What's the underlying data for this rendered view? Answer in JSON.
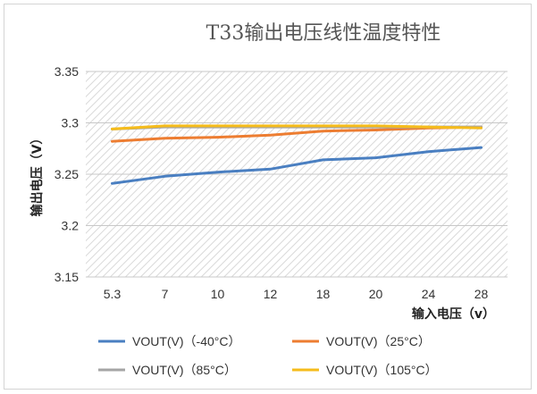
{
  "chart_data": {
    "type": "line",
    "title": "T33输出电压线性温度特性",
    "xlabel": "输入电压（v）",
    "ylabel": "输出电压（V）",
    "categories": [
      "5.3",
      "7",
      "10",
      "12",
      "18",
      "20",
      "24",
      "28"
    ],
    "ylim": [
      3.15,
      3.35
    ],
    "yticks": [
      "3.15",
      "3.2",
      "3.25",
      "3.3",
      "3.35"
    ],
    "grid": true,
    "legend_position": "bottom",
    "series": [
      {
        "name": "VOUT(V)（-40°C）",
        "color": "#4a7fc1",
        "values": [
          3.241,
          3.248,
          3.252,
          3.255,
          3.264,
          3.266,
          3.272,
          3.276
        ]
      },
      {
        "name": "VOUT(V)（25°C）",
        "color": "#ed7d31",
        "values": [
          3.282,
          3.285,
          3.286,
          3.288,
          3.292,
          3.293,
          3.295,
          3.296
        ]
      },
      {
        "name": "VOUT(V)（85°C）",
        "color": "#a5a5a5",
        "values": [
          3.294,
          3.296,
          3.296,
          3.296,
          3.296,
          3.296,
          3.296,
          3.296
        ]
      },
      {
        "name": "VOUT(V)（105°C）",
        "color": "#f5bc1c",
        "values": [
          3.294,
          3.297,
          3.297,
          3.297,
          3.297,
          3.297,
          3.296,
          3.295
        ]
      }
    ]
  }
}
